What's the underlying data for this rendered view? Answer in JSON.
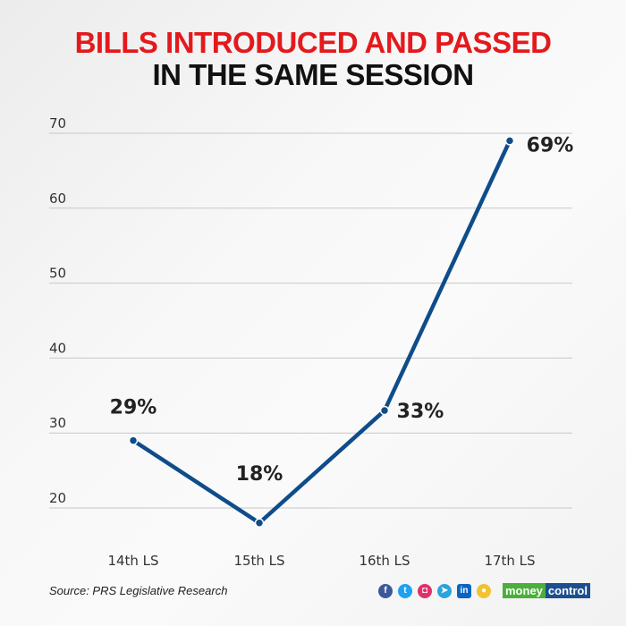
{
  "title_line1": "BILLS INTRODUCED AND PASSED",
  "title_line2": "IN THE SAME SESSION",
  "chart_data": {
    "type": "line",
    "categories": [
      "14th LS",
      "15th LS",
      "16th LS",
      "17th LS"
    ],
    "values": [
      29,
      18,
      33,
      69
    ],
    "data_labels": [
      "29%",
      "18%",
      "33%",
      "69%"
    ],
    "yticks": [
      "20",
      "30",
      "40",
      "50",
      "60",
      "70"
    ],
    "ylim": [
      20,
      70
    ],
    "grid": true,
    "line_color": "#0f4c8a"
  },
  "source": "Source: PRS Legislative Research",
  "social_icons": [
    "facebook-icon",
    "twitter-icon",
    "instagram-icon",
    "telegram-icon",
    "linkedin-icon",
    "koo-icon"
  ],
  "brand": {
    "part1": "money",
    "part2": "control"
  }
}
